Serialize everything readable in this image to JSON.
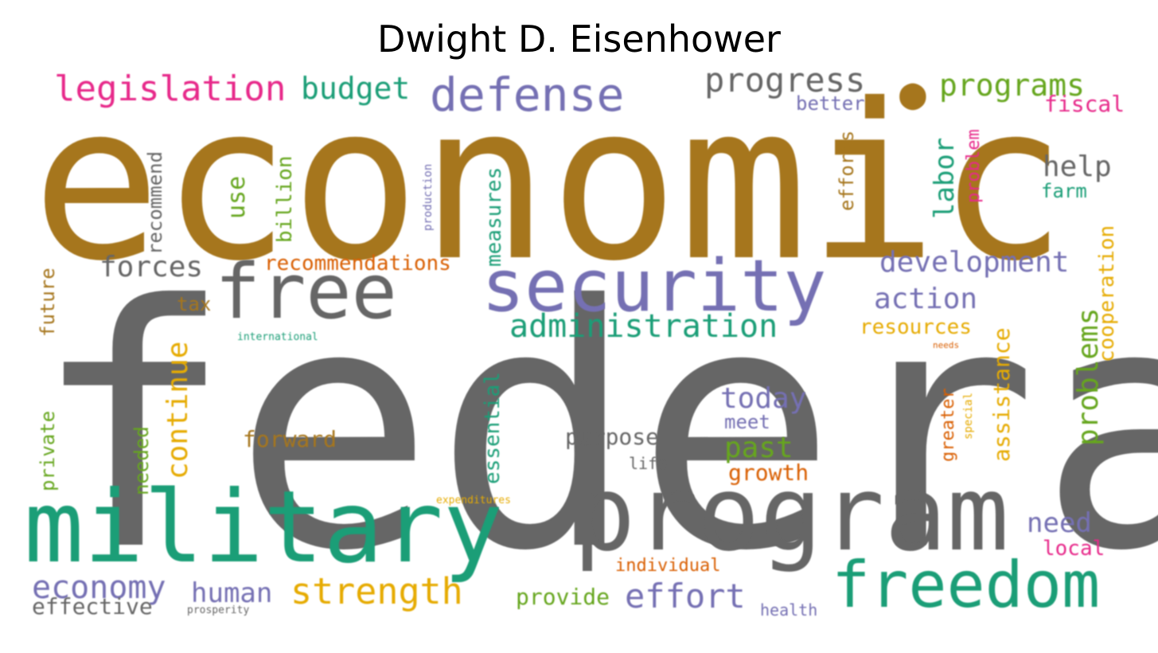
{
  "title": "Dwight D. Eisenhower",
  "palette": {
    "ochre": "#a6761d",
    "gray": "#666666",
    "teal": "#1b9e77",
    "purple": "#7570b3",
    "orange": "#d95f02",
    "pink": "#e7298a",
    "green": "#66a61e",
    "gold": "#e6ab02"
  },
  "words": [
    {
      "text": "economic",
      "color": "ochre"
    },
    {
      "text": "federal",
      "color": "gray"
    },
    {
      "text": "military",
      "color": "teal"
    },
    {
      "text": "program",
      "color": "gray"
    },
    {
      "text": "security",
      "color": "purple"
    },
    {
      "text": "free",
      "color": "gray"
    },
    {
      "text": "freedom",
      "color": "teal"
    },
    {
      "text": "defense",
      "color": "purple"
    },
    {
      "text": "legislation",
      "color": "pink"
    },
    {
      "text": "budget",
      "color": "teal"
    },
    {
      "text": "progress",
      "color": "gray"
    },
    {
      "text": "programs",
      "color": "green"
    },
    {
      "text": "strength",
      "color": "gold"
    },
    {
      "text": "administration",
      "color": "teal"
    },
    {
      "text": "development",
      "color": "purple"
    },
    {
      "text": "economy",
      "color": "purple"
    },
    {
      "text": "effort",
      "color": "purple"
    },
    {
      "text": "action",
      "color": "purple"
    },
    {
      "text": "forces",
      "color": "gray"
    },
    {
      "text": "today",
      "color": "purple"
    },
    {
      "text": "human",
      "color": "purple"
    },
    {
      "text": "need",
      "color": "purple"
    },
    {
      "text": "past",
      "color": "green"
    },
    {
      "text": "help",
      "color": "gray"
    },
    {
      "text": "effective",
      "color": "gray"
    },
    {
      "text": "recommendations",
      "color": "orange"
    },
    {
      "text": "resources",
      "color": "gold"
    },
    {
      "text": "provide",
      "color": "green"
    },
    {
      "text": "forward",
      "color": "ochre"
    },
    {
      "text": "purpose",
      "color": "gray"
    },
    {
      "text": "fiscal",
      "color": "pink"
    },
    {
      "text": "better",
      "color": "purple"
    },
    {
      "text": "growth",
      "color": "orange"
    },
    {
      "text": "local",
      "color": "pink"
    },
    {
      "text": "meet",
      "color": "purple"
    },
    {
      "text": "farm",
      "color": "teal"
    },
    {
      "text": "tax",
      "color": "ochre"
    },
    {
      "text": "individual",
      "color": "orange"
    },
    {
      "text": "health",
      "color": "purple"
    },
    {
      "text": "life",
      "color": "gray"
    },
    {
      "text": "expenditures",
      "color": "gold"
    },
    {
      "text": "prosperity",
      "color": "gray"
    },
    {
      "text": "international",
      "color": "teal"
    },
    {
      "text": "needs",
      "color": "orange"
    },
    {
      "text": "continue",
      "color": "gold"
    },
    {
      "text": "problems",
      "color": "green"
    },
    {
      "text": "labor",
      "color": "teal"
    },
    {
      "text": "use",
      "color": "green"
    },
    {
      "text": "billion",
      "color": "green"
    },
    {
      "text": "measures",
      "color": "teal"
    },
    {
      "text": "essential",
      "color": "teal"
    },
    {
      "text": "assistance",
      "color": "gold"
    },
    {
      "text": "cooperation",
      "color": "gold"
    },
    {
      "text": "future",
      "color": "ochre"
    },
    {
      "text": "private",
      "color": "green"
    },
    {
      "text": "needed",
      "color": "green"
    },
    {
      "text": "recommend",
      "color": "gray"
    },
    {
      "text": "efforts",
      "color": "ochre"
    },
    {
      "text": "problem",
      "color": "pink"
    },
    {
      "text": "greater",
      "color": "orange"
    },
    {
      "text": "special",
      "color": "gold"
    },
    {
      "text": "production",
      "color": "purple"
    }
  ]
}
